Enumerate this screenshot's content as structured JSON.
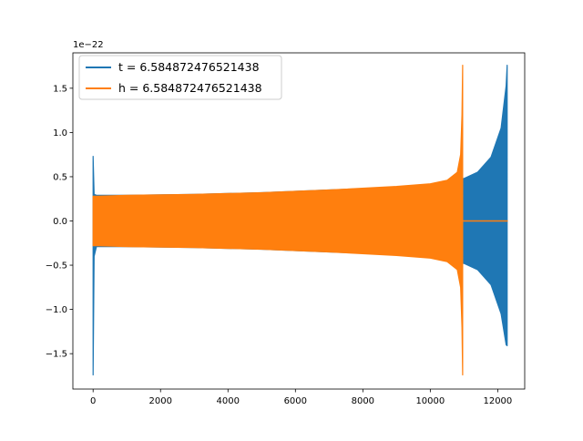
{
  "chart_data": {
    "type": "line",
    "title": "",
    "xlabel": "",
    "ylabel": "",
    "y_scale_label": "1e−22",
    "xlim": [
      -600,
      12800
    ],
    "ylim": [
      -1.9,
      1.9
    ],
    "x_ticks": [
      0,
      2000,
      4000,
      6000,
      8000,
      10000,
      12000
    ],
    "x_tick_labels": [
      "0",
      "2000",
      "4000",
      "6000",
      "8000",
      "10000",
      "12000"
    ],
    "y_ticks": [
      -1.5,
      -1.0,
      -0.5,
      0.0,
      0.5,
      1.0,
      1.5
    ],
    "y_tick_labels": [
      "−1.5",
      "−1.0",
      "−0.5",
      "0.0",
      "0.5",
      "1.0",
      "1.5"
    ],
    "grid": false,
    "legend_position": "upper-left",
    "series": [
      {
        "name": "t = 6.584872476521438",
        "color": "#1f77b4",
        "envelope": {
          "x": [
            0,
            30,
            100,
            1000,
            3000,
            5000,
            7000,
            9000,
            10000,
            10600,
            10900,
            11000,
            11400,
            11800,
            12100,
            12250,
            12280
          ],
          "upper": [
            0.73,
            0.3,
            0.29,
            0.29,
            0.3,
            0.32,
            0.35,
            0.38,
            0.41,
            0.44,
            0.47,
            0.48,
            0.55,
            0.72,
            1.05,
            1.53,
            1.76
          ],
          "lower": [
            -1.74,
            -0.4,
            -0.29,
            -0.29,
            -0.3,
            -0.32,
            -0.35,
            -0.38,
            -0.41,
            -0.44,
            -0.47,
            -0.48,
            -0.55,
            -0.72,
            -1.05,
            -1.4,
            -1.41
          ]
        },
        "post_zero_start": 12280,
        "post_zero_end": 12300
      },
      {
        "name": "h = 6.584872476521438",
        "color": "#ff7f0e",
        "envelope": {
          "x": [
            0,
            30,
            100,
            1000,
            3000,
            5000,
            7000,
            9000,
            10000,
            10500,
            10800,
            10900,
            10940,
            10960
          ],
          "upper": [
            0.28,
            0.28,
            0.28,
            0.29,
            0.3,
            0.32,
            0.35,
            0.39,
            0.42,
            0.46,
            0.55,
            0.75,
            1.2,
            1.76
          ],
          "lower": [
            -0.28,
            -0.28,
            -0.28,
            -0.29,
            -0.3,
            -0.32,
            -0.35,
            -0.39,
            -0.42,
            -0.46,
            -0.55,
            -0.75,
            -1.2,
            -1.74
          ]
        },
        "post_zero_start": 10960,
        "post_zero_end": 12300
      }
    ]
  }
}
